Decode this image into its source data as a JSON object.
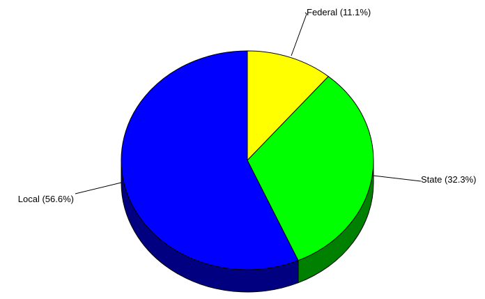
{
  "chart_data": {
    "type": "pie",
    "style": "3d",
    "start": "12 o'clock",
    "direction": "clockwise",
    "slices": [
      {
        "label": "Federal (11.1%)",
        "name": "Federal",
        "value": 11.1,
        "color": "#ffff00",
        "side_color": "#808000"
      },
      {
        "label": "State (32.3%)",
        "name": "State",
        "value": 32.3,
        "color": "#00ff00",
        "side_color": "#008000"
      },
      {
        "label": "Local (56.6%)",
        "name": "Local",
        "value": 56.6,
        "color": "#0000ff",
        "side_color": "#000080"
      }
    ]
  }
}
